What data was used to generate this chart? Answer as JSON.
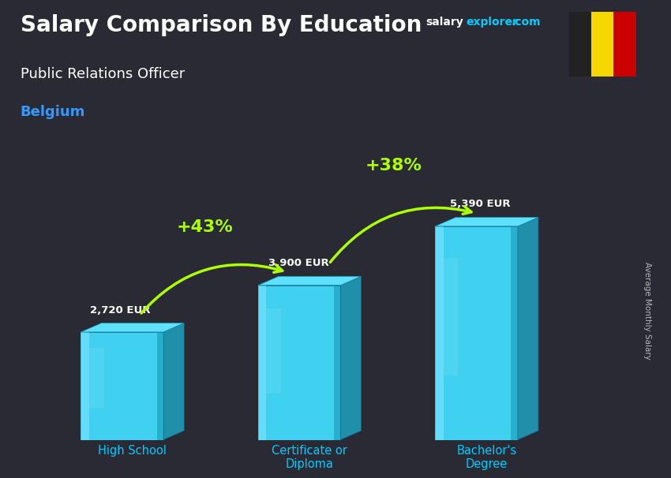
{
  "title_main": "Salary Comparison By Education",
  "subtitle": "Public Relations Officer",
  "country": "Belgium",
  "categories": [
    "High School",
    "Certificate or\nDiploma",
    "Bachelor's\nDegree"
  ],
  "values": [
    2720,
    3900,
    5390
  ],
  "value_labels": [
    "2,720 EUR",
    "3,900 EUR",
    "5,390 EUR"
  ],
  "pct_changes": [
    "+43%",
    "+38%"
  ],
  "bar_front_color": "#40d0f0",
  "bar_highlight_color": "#80e8ff",
  "bar_shadow_color": "#1090b0",
  "bar_top_color": "#60e0ff",
  "bar_right_color": "#2090aa",
  "background_color": "#2a2a35",
  "title_color": "#ffffff",
  "subtitle_color": "#ffffff",
  "country_color": "#3399ff",
  "value_label_color": "#ffffff",
  "pct_color": "#aaff00",
  "arrow_color": "#aaff00",
  "xlabel_color": "#00ccff",
  "site_salary_color": "#ffffff",
  "site_explorer_color": "#00ccff",
  "ylabel_text": "Average Monthly Salary",
  "flag_colors": [
    "#222222",
    "#f5d800",
    "#cc0000"
  ],
  "figsize": [
    8.5,
    6.06
  ],
  "dpi": 100
}
